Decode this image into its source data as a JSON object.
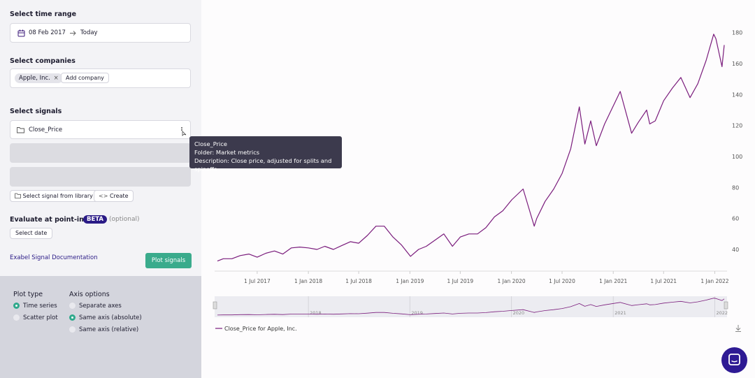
{
  "sidebar": {
    "time_range": {
      "label": "Select time range",
      "start": "08 Feb 2017",
      "end": "Today"
    },
    "companies": {
      "label": "Select companies",
      "selected": [
        "Apple, Inc."
      ],
      "add_button": "Add company"
    },
    "signals": {
      "label": "Select signals",
      "items": [
        "Close_Price"
      ],
      "library_button": "Select signal from library",
      "create_button": "Create"
    },
    "tooltip": {
      "title": "Close_Price",
      "folder": "Folder: Market metrics",
      "description": "Description: Close price, adjusted for splits and spinoffs"
    },
    "point_in_time": {
      "label": "Evaluate at point-in-time",
      "badge": "BETA",
      "optional": "(optional)",
      "button": "Select date"
    },
    "doc_link": "Exabel Signal Documentation",
    "plot_button": "Plot signals",
    "plot_type": {
      "label": "Plot type",
      "options": [
        "Time series",
        "Scatter plot"
      ],
      "selected": 0
    },
    "axis_options": {
      "label": "Axis options",
      "options": [
        "Separate axes",
        "Same axis (absolute)",
        "Same axis (relative)"
      ],
      "selected": 1
    }
  },
  "chart_data": {
    "type": "line",
    "x": [
      "2017-02-08",
      "2017-03-01",
      "2017-04-01",
      "2017-05-01",
      "2017-06-01",
      "2017-07-01",
      "2017-08-01",
      "2017-09-01",
      "2017-10-01",
      "2017-11-01",
      "2017-12-01",
      "2018-01-01",
      "2018-02-01",
      "2018-03-01",
      "2018-04-01",
      "2018-05-01",
      "2018-06-01",
      "2018-07-01",
      "2018-08-01",
      "2018-09-01",
      "2018-10-01",
      "2018-11-01",
      "2018-12-01",
      "2019-01-03",
      "2019-02-01",
      "2019-03-01",
      "2019-04-01",
      "2019-05-03",
      "2019-06-03",
      "2019-07-01",
      "2019-08-01",
      "2019-09-01",
      "2019-10-01",
      "2019-11-01",
      "2019-12-01",
      "2020-01-02",
      "2020-02-12",
      "2020-03-23",
      "2020-04-01",
      "2020-05-01",
      "2020-06-01",
      "2020-07-01",
      "2020-08-01",
      "2020-09-01",
      "2020-09-21",
      "2020-10-12",
      "2020-11-01",
      "2020-12-01",
      "2021-01-26",
      "2021-03-08",
      "2021-04-01",
      "2021-05-01",
      "2021-05-12",
      "2021-06-01",
      "2021-07-01",
      "2021-08-01",
      "2021-09-01",
      "2021-10-04",
      "2021-11-01",
      "2021-12-01",
      "2021-12-28",
      "2022-01-05",
      "2022-01-27",
      "2022-02-04"
    ],
    "series": [
      {
        "name": "Close_Price for Apple, Inc.",
        "color": "#7a1c7c",
        "values": [
          32.5,
          34,
          34,
          36,
          37,
          35,
          37.5,
          39,
          37,
          41,
          41.5,
          41,
          40,
          42,
          40,
          42.5,
          45,
          44,
          49,
          55,
          55,
          48,
          43,
          35.5,
          40,
          42,
          46,
          50,
          42,
          48,
          50,
          50,
          54,
          61,
          65,
          72,
          79,
          55,
          60,
          71,
          79,
          89,
          105,
          132,
          108,
          123,
          107,
          121,
          142,
          115,
          122,
          130,
          121,
          123,
          136,
          144,
          151,
          138,
          147,
          162,
          179,
          176,
          158,
          172
        ]
      }
    ],
    "xlim": [
      "2017-02-08",
      "2022-02-04"
    ],
    "xticks": [
      {
        "value": "2017-07-01",
        "label": "1 Jul 2017"
      },
      {
        "value": "2018-01-01",
        "label": "1 Jan 2018"
      },
      {
        "value": "2018-07-01",
        "label": "1 Jul 2018"
      },
      {
        "value": "2019-01-01",
        "label": "1 Jan 2019"
      },
      {
        "value": "2019-07-01",
        "label": "1 Jul 2019"
      },
      {
        "value": "2020-01-01",
        "label": "1 Jan 2020"
      },
      {
        "value": "2020-07-01",
        "label": "1 Jul 2020"
      },
      {
        "value": "2021-01-01",
        "label": "1 Jan 2021"
      },
      {
        "value": "2021-07-01",
        "label": "1 Jul 2021"
      },
      {
        "value": "2022-01-01",
        "label": "1 Jan 2022"
      }
    ],
    "ylim": [
      26,
      183
    ],
    "yticks": [
      40,
      60,
      80,
      100,
      120,
      140,
      160,
      180
    ],
    "navigator_ticks": [
      {
        "value": "2018-01-01",
        "label": "2018"
      },
      {
        "value": "2019-01-01",
        "label": "2019"
      },
      {
        "value": "2020-01-01",
        "label": "2020"
      },
      {
        "value": "2021-01-01",
        "label": "2021"
      },
      {
        "value": "2022-01-01",
        "label": "2022"
      }
    ]
  }
}
